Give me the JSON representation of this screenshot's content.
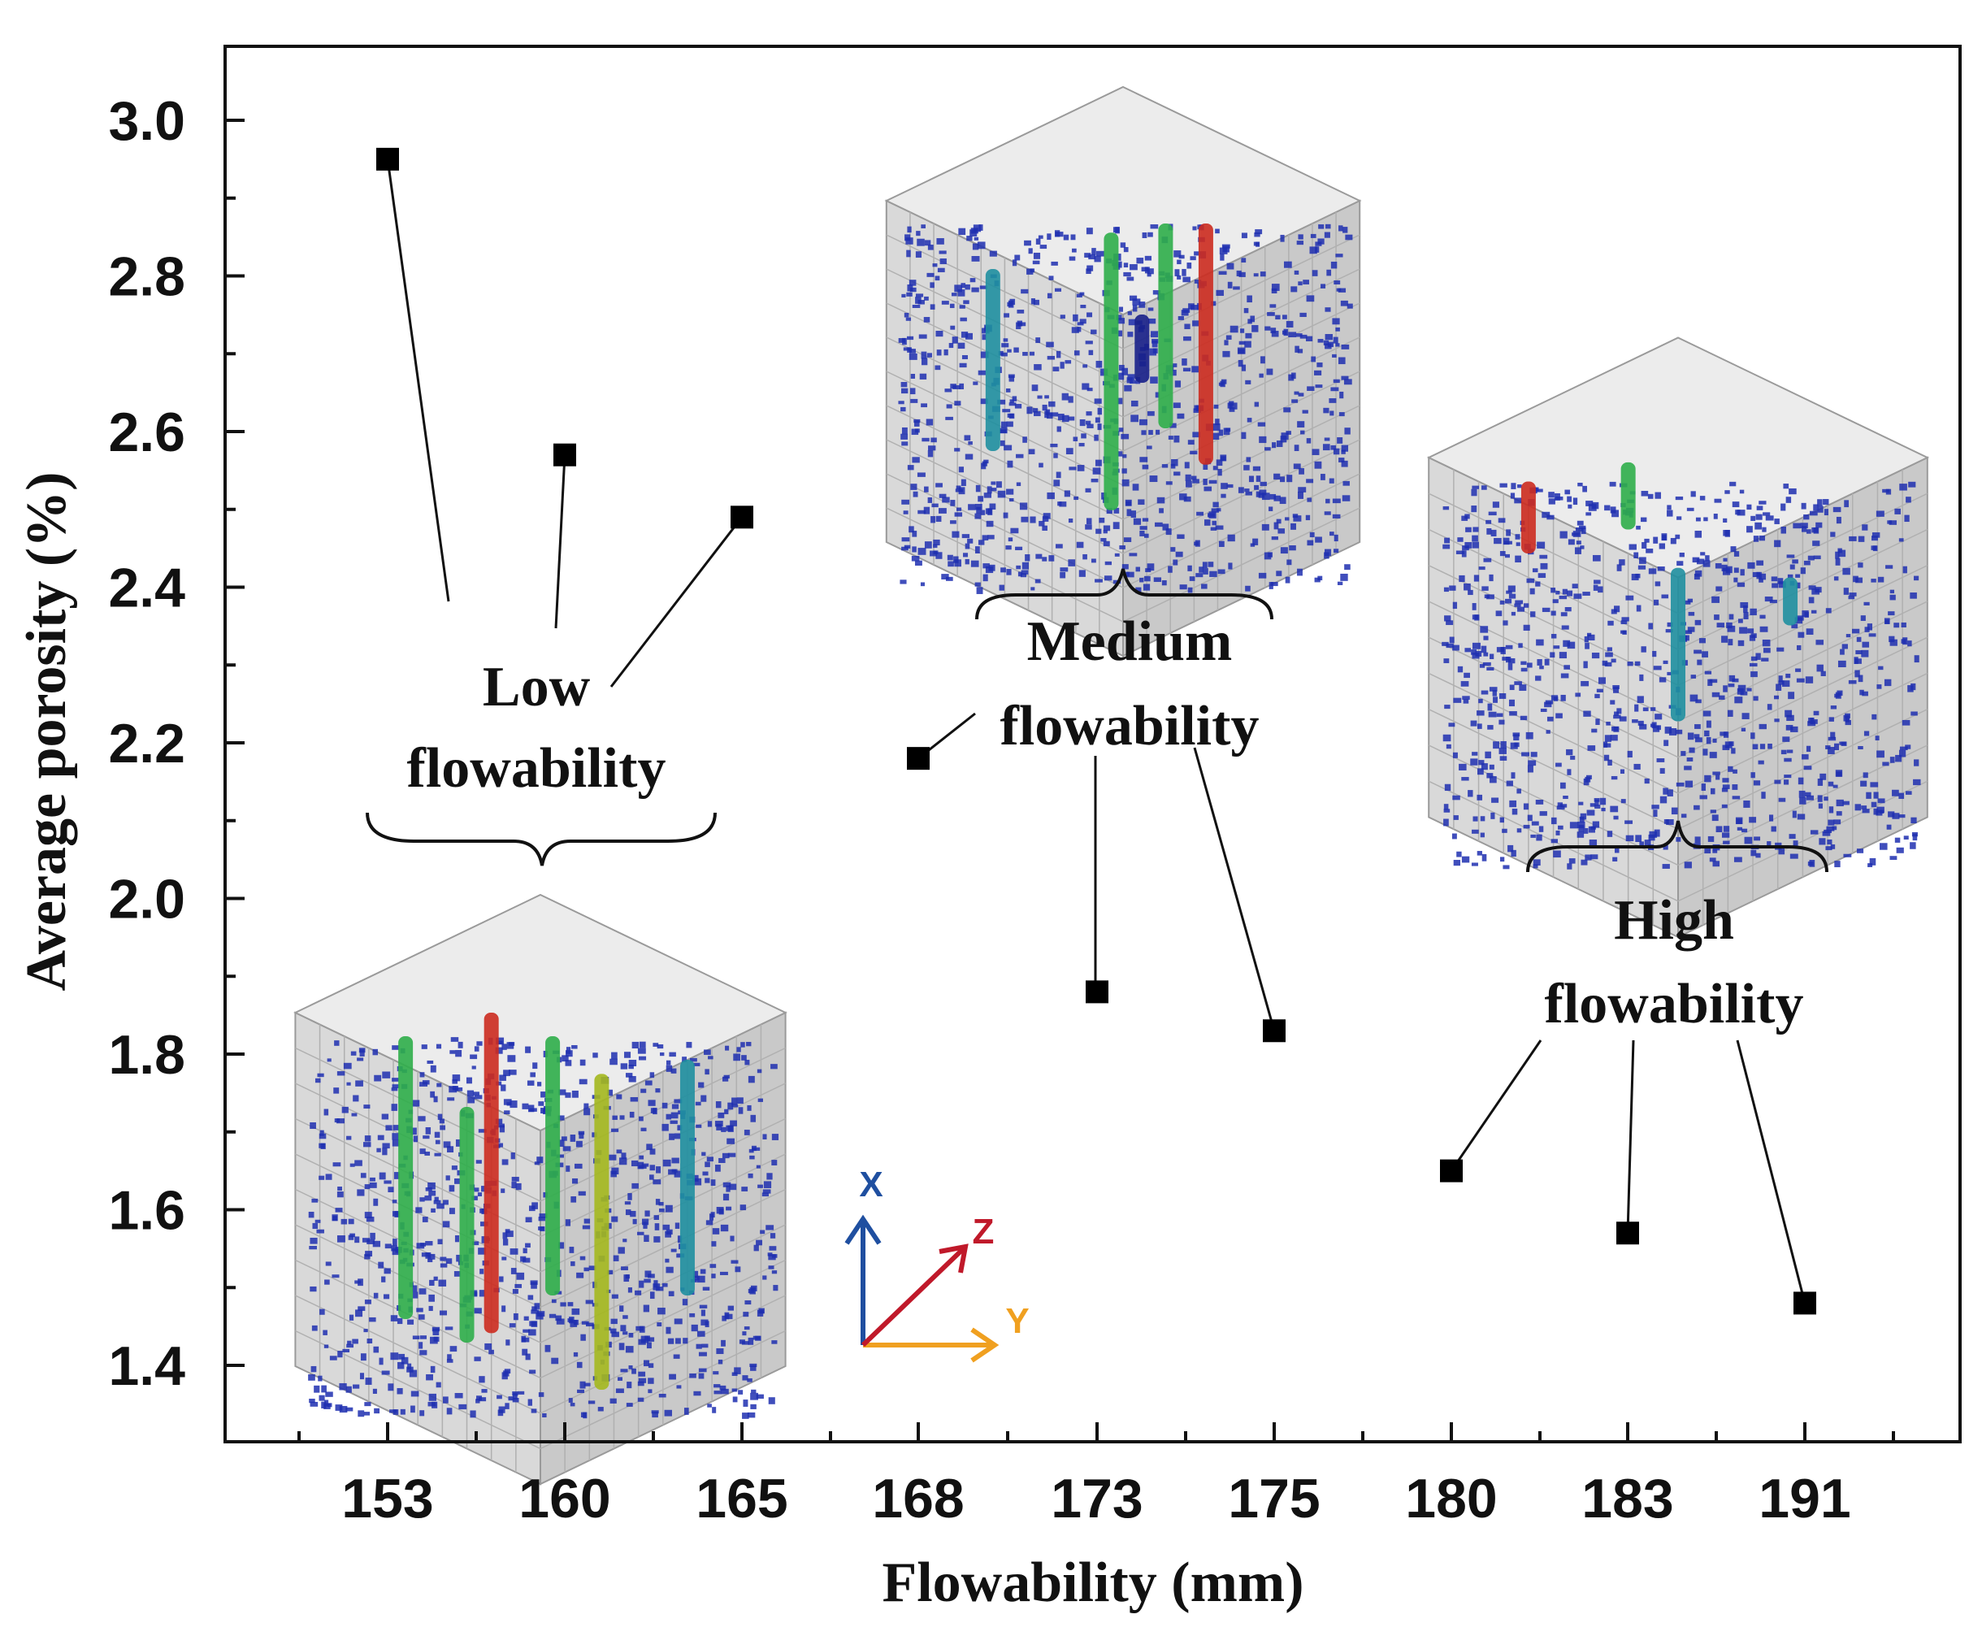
{
  "chart_data": {
    "type": "scatter",
    "title": "",
    "xlabel": "Flowability (mm)",
    "ylabel": "Average porosity (%)",
    "x_categories": [
      "153",
      "160",
      "165",
      "168",
      "173",
      "175",
      "180",
      "183",
      "191"
    ],
    "ylim": [
      1.3,
      3.1
    ],
    "y_ticks": [
      "1.4",
      "1.6",
      "1.8",
      "2.0",
      "2.2",
      "2.4",
      "2.6",
      "2.8",
      "3.0"
    ],
    "series": [
      {
        "name": "Average porosity",
        "marker": "square",
        "x": [
          "153",
          "160",
          "165",
          "168",
          "173",
          "175",
          "180",
          "183",
          "191"
        ],
        "y": [
          2.95,
          2.57,
          2.49,
          2.18,
          1.88,
          1.83,
          1.65,
          1.57,
          1.48
        ]
      }
    ],
    "annotations": [
      {
        "label_line1": "Low",
        "label_line2": "flowability",
        "points": [
          "153",
          "160",
          "165"
        ]
      },
      {
        "label_line1": "Medium",
        "label_line2": "flowability",
        "points": [
          "168",
          "173",
          "175"
        ]
      },
      {
        "label_line1": "High",
        "label_line2": "flowability",
        "points": [
          "180",
          "183",
          "191"
        ]
      }
    ],
    "inset_axes": {
      "x": "X",
      "y": "Y",
      "z": "Z"
    },
    "grid": false
  },
  "colors": {
    "marker": "#000000",
    "axis": "#111111",
    "pore_blue": "#1f2fb0",
    "pore_green": "#2fae4a",
    "pore_red": "#cc2b1f",
    "pore_teal": "#1f8fa0",
    "pore_yellow": "#a4b81e",
    "inset_x": "#1f4fa0",
    "inset_y": "#f0a020",
    "inset_z": "#c0192a"
  }
}
